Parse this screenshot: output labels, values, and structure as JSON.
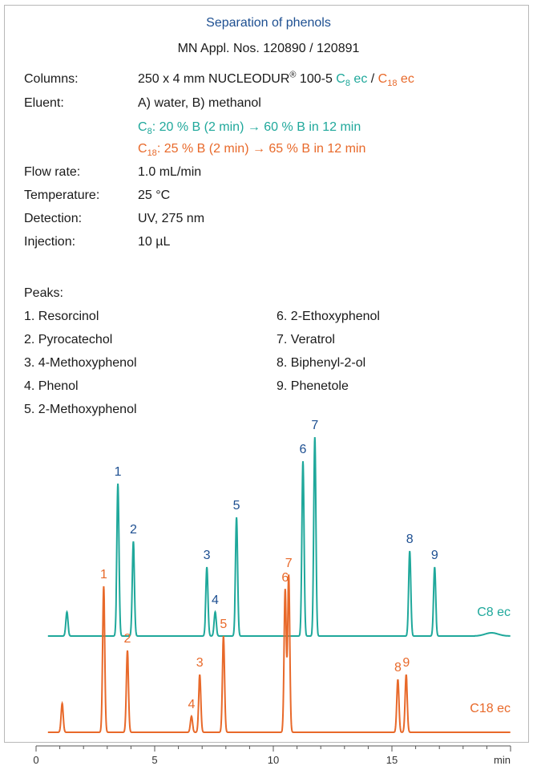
{
  "header": {
    "title": "Separation of phenols",
    "subtitle": "MN Appl. Nos. 120890 / 120891"
  },
  "conditions": {
    "columns": {
      "label": "Columns:",
      "prefix": "250 x 4 mm NUCLEODUR",
      "reg": "®",
      "mid": " 100-5 ",
      "c8_main": "C",
      "c8_sub": "8",
      "c8_tail": " ec",
      "sep": " / ",
      "c18_main": "C",
      "c18_sub": "18",
      "c18_tail": " ec"
    },
    "eluent": {
      "label": "Eluent:",
      "value": "A) water, B) methanol",
      "c8_main": "C",
      "c8_sub": "8",
      "c8_rest": ": 20 % B (2 min) → 60 % B in 12 min",
      "c18_main": "C",
      "c18_sub": "18",
      "c18_rest": ": 25 % B (2 min) → 65 % B in 12 min"
    },
    "flow": {
      "label": "Flow rate:",
      "value": "1.0 mL/min"
    },
    "temperature": {
      "label": "Temperature:",
      "value": "25 °C"
    },
    "detection": {
      "label": "Detection:",
      "value": "UV, 275 nm"
    },
    "injection": {
      "label": "Injection:",
      "value": "10 µL"
    }
  },
  "peaks_heading": "Peaks:",
  "peaks": [
    "1. Resorcinol",
    "2. Pyrocatechol",
    "3. 4-Methoxyphenol",
    "4. Phenol",
    "5. 2-Methoxyphenol",
    "6. 2-Ethoxyphenol",
    "7. Veratrol",
    "8. Biphenyl-2-ol",
    "9. Phenetole"
  ],
  "colors": {
    "c8": "#1fa89b",
    "c18": "#e8692a",
    "c8_labels": "#1d4f91",
    "title": "#1d4f91"
  },
  "chart_data": {
    "type": "line",
    "xlabel": "min",
    "xlim": [
      0,
      20
    ],
    "x_ticks": [
      0,
      5,
      10,
      15
    ],
    "x_tick_labels": [
      "0",
      "5",
      "10",
      "15"
    ],
    "series": [
      {
        "name": "C8 ec",
        "color": "#1fa89b",
        "baseline": 0,
        "peaks": [
          {
            "label": "",
            "rt": 1.3,
            "height": 30
          },
          {
            "label": "1",
            "rt": 3.45,
            "height": 190
          },
          {
            "label": "2",
            "rt": 4.1,
            "height": 118
          },
          {
            "label": "3",
            "rt": 7.2,
            "height": 86
          },
          {
            "label": "4",
            "rt": 7.55,
            "height": 30
          },
          {
            "label": "5",
            "rt": 8.45,
            "height": 148
          },
          {
            "label": "6",
            "rt": 11.25,
            "height": 218
          },
          {
            "label": "7",
            "rt": 11.75,
            "height": 248
          },
          {
            "label": "8",
            "rt": 15.75,
            "height": 106
          },
          {
            "label": "9",
            "rt": 16.8,
            "height": 86
          }
        ]
      },
      {
        "name": "C18 ec",
        "color": "#e8692a",
        "baseline": 0,
        "peaks": [
          {
            "label": "",
            "rt": 1.1,
            "height": 36
          },
          {
            "label": "1",
            "rt": 2.85,
            "height": 182
          },
          {
            "label": "2",
            "rt": 3.85,
            "height": 102
          },
          {
            "label": "3",
            "rt": 6.9,
            "height": 72
          },
          {
            "label": "4",
            "rt": 6.55,
            "height": 20
          },
          {
            "label": "5",
            "rt": 7.9,
            "height": 120
          },
          {
            "label": "6",
            "rt": 10.5,
            "height": 178
          },
          {
            "label": "7",
            "rt": 10.65,
            "height": 196
          },
          {
            "label": "8",
            "rt": 15.25,
            "height": 66
          },
          {
            "label": "9",
            "rt": 15.6,
            "height": 72
          }
        ]
      }
    ]
  }
}
